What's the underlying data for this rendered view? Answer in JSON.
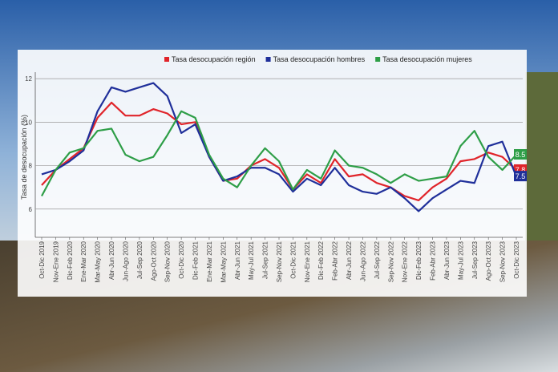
{
  "chart_data": {
    "type": "line",
    "y_label": "Tasa de desocupación (%)",
    "categories": [
      "Oct-Dic 2019",
      "Nov-Ene 2019",
      "Dic-Feb 2020",
      "Ene-Mar 2020",
      "Mar-May 2020",
      "Abr-Jun 2020",
      "Jun-Ago 2020",
      "Jul-Sep 2020",
      "Ago-Oct 2020",
      "Sep-Nov 2020",
      "Oct-Dic 2020",
      "Dic-Feb 2021",
      "Ene-Mar 2021",
      "Mar-May 2021",
      "Abr-Jun 2021",
      "May-Jul 2021",
      "Jul-Sep 2021",
      "Sep-Nov 2021",
      "Oct-Dic 2021",
      "Nov-Ene 2021",
      "Dic-Feb 2022",
      "Feb-Abr 2022",
      "Abr-Jun 2022",
      "Jun-Ago 2022",
      "Jul-Sep 2022",
      "Sep-Nov 2022",
      "Nov-Ene 2022",
      "Dic-Feb 2023",
      "Feb-Abr 2023",
      "Abr-Jun 2023",
      "May-Jul 2023",
      "Jul-Sep 2023",
      "Ago-Oct 2023",
      "Sep-Nov 2023",
      "Oct-Dic 2023"
    ],
    "series": [
      {
        "name": "Tasa desocupación región",
        "color": "#e0242a",
        "values": [
          7.1,
          7.8,
          8.3,
          8.8,
          10.2,
          10.9,
          10.3,
          10.3,
          10.6,
          10.4,
          9.9,
          10.0,
          8.4,
          7.3,
          7.4,
          8.0,
          8.3,
          7.9,
          6.9,
          7.6,
          7.2,
          8.3,
          7.5,
          7.6,
          7.2,
          7.0,
          6.6,
          6.4,
          7.0,
          7.4,
          8.2,
          8.3,
          8.6,
          8.4,
          7.8
        ]
      },
      {
        "name": "Tasa desocupación hombres",
        "color": "#1f2f9a",
        "values": [
          7.6,
          7.8,
          8.2,
          8.7,
          10.5,
          11.6,
          11.4,
          11.6,
          11.8,
          11.2,
          9.5,
          9.9,
          8.4,
          7.3,
          7.5,
          7.9,
          7.9,
          7.6,
          6.8,
          7.4,
          7.1,
          7.9,
          7.1,
          6.8,
          6.7,
          7.0,
          6.5,
          5.9,
          6.5,
          6.9,
          7.3,
          7.2,
          8.9,
          9.1,
          7.5
        ]
      },
      {
        "name": "Tasa desocupación mujeres",
        "color": "#2e9e47",
        "values": [
          6.6,
          7.8,
          8.6,
          8.8,
          9.6,
          9.7,
          8.5,
          8.2,
          8.4,
          9.4,
          10.5,
          10.2,
          8.5,
          7.4,
          7.0,
          8.0,
          8.8,
          8.2,
          6.9,
          7.8,
          7.4,
          8.7,
          8.0,
          7.9,
          7.6,
          7.2,
          7.6,
          7.3,
          7.4,
          7.5,
          8.9,
          9.6,
          8.4,
          7.8,
          8.5
        ]
      }
    ],
    "ylim": [
      4.7,
      12.3
    ],
    "yticks": [
      6,
      8,
      10,
      12
    ],
    "grid": true
  }
}
